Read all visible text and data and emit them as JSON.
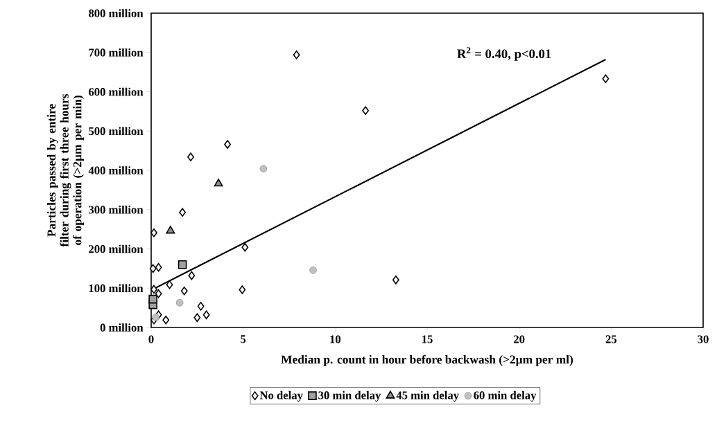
{
  "chart_data": {
    "type": "scatter",
    "xlabel": "Median p. count in hour before backwash (>2µm per ml)",
    "ylabel": "Particles passed by entire filter during first three hours of operation (>2µm per min)",
    "xlim": [
      0,
      30
    ],
    "xticks": [
      0,
      5,
      10,
      15,
      20,
      25,
      30
    ],
    "ylim": [
      0,
      800
    ],
    "yticks": [
      {
        "value": 0,
        "label": "0 million"
      },
      {
        "value": 100,
        "label": "100 million"
      },
      {
        "value": 200,
        "label": "200 million"
      },
      {
        "value": 300,
        "label": "300 million"
      },
      {
        "value": 400,
        "label": "400 million"
      },
      {
        "value": 500,
        "label": "500 million"
      },
      {
        "value": 600,
        "label": "600 million"
      },
      {
        "value": 700,
        "label": "700 million"
      },
      {
        "value": 800,
        "label": "800 million"
      }
    ],
    "grid": false,
    "legend": "bottom",
    "annotations": [
      "R$^{2}$ = 0.40, p<0.01"
    ],
    "series": [
      {
        "name": "No delay",
        "marker": "diamond",
        "color": "#000000",
        "x": [
          7.9,
          11.65,
          4.15,
          2.15,
          24.7,
          1.7,
          0.15,
          5.1,
          0.1,
          0.4,
          13.3,
          4.95,
          1.8,
          2.2,
          1.0,
          0.15,
          0.4,
          2.7,
          2.5,
          3.0,
          0.8,
          0.4,
          0.15
        ],
        "values": [
          694,
          552,
          466,
          434,
          633,
          293,
          241,
          204,
          150,
          153,
          121,
          96,
          93,
          132,
          109,
          97,
          86,
          54,
          25,
          32,
          19,
          32,
          19
        ]
      },
      {
        "name": "30 min delay",
        "marker": "square",
        "color": "#a0a0a0",
        "x": [
          1.7,
          0.1,
          0.1
        ],
        "values": [
          160,
          58,
          72
        ]
      },
      {
        "name": "45 min delay",
        "marker": "triangle",
        "color": "#909090",
        "x": [
          3.66,
          1.05
        ],
        "values": [
          366,
          246
        ]
      },
      {
        "name": "60 min delay",
        "marker": "circle",
        "color": "#c0c0c0",
        "x": [
          6.1,
          8.8,
          1.55,
          0.25
        ],
        "values": [
          404,
          146,
          63,
          26
        ]
      },
      {
        "type": "line",
        "color": "#000000",
        "x": [
          0,
          24.7
        ],
        "values": [
          95,
          682
        ]
      }
    ]
  }
}
